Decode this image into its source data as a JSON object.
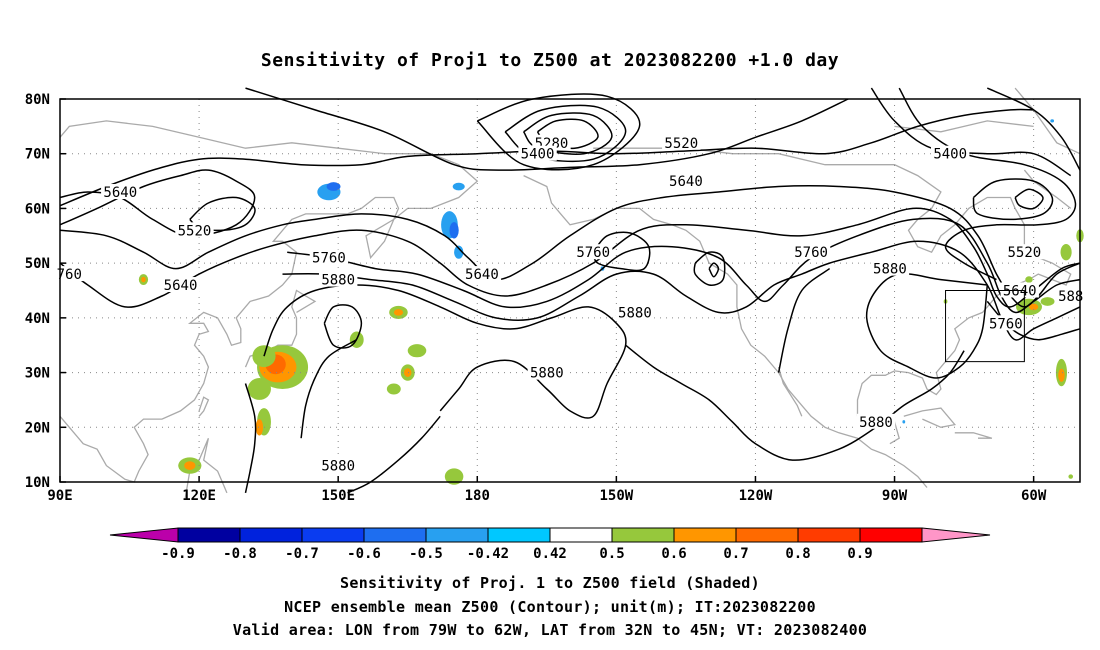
{
  "chart_data": {
    "type": "contour_map",
    "title": "Sensitivity of Proj1 to Z500 at 2023082200 +1.0 day",
    "x_ticks": [
      "90E",
      "120E",
      "150E",
      "180",
      "150W",
      "120W",
      "90W",
      "60W"
    ],
    "y_ticks": [
      "10N",
      "20N",
      "30N",
      "40N",
      "50N",
      "60N",
      "70N",
      "80N"
    ],
    "lon_range": [
      90,
      310
    ],
    "lat_range": [
      10,
      80
    ],
    "grid": true,
    "contour_field": "Z500",
    "contour_levels": [
      5280,
      5400,
      5520,
      5640,
      5760,
      5880
    ],
    "contour_labels": [
      {
        "text": "5640",
        "lon": 103,
        "lat": 63
      },
      {
        "text": "5520",
        "lon": 119,
        "lat": 56
      },
      {
        "text": "5640",
        "lon": 116,
        "lat": 46
      },
      {
        "text": "760",
        "lon": 92,
        "lat": 48
      },
      {
        "text": "5760",
        "lon": 148,
        "lat": 51
      },
      {
        "text": "5880",
        "lon": 150,
        "lat": 47
      },
      {
        "text": "5280",
        "lon": 196,
        "lat": 72
      },
      {
        "text": "5400",
        "lon": 193,
        "lat": 70
      },
      {
        "text": "5520",
        "lon": 224,
        "lat": 72
      },
      {
        "text": "5640",
        "lon": 225,
        "lat": 65
      },
      {
        "text": "5400",
        "lon": 282,
        "lat": 70
      },
      {
        "text": "5640",
        "lon": 181,
        "lat": 48
      },
      {
        "text": "5760",
        "lon": 205,
        "lat": 52
      },
      {
        "text": "5880",
        "lon": 214,
        "lat": 41
      },
      {
        "text": "5880",
        "lon": 195,
        "lat": 30
      },
      {
        "text": "5760",
        "lon": 252,
        "lat": 52
      },
      {
        "text": "5880",
        "lon": 269,
        "lat": 49
      },
      {
        "text": "5520",
        "lon": 298,
        "lat": 52
      },
      {
        "text": "5640",
        "lon": 297,
        "lat": 45
      },
      {
        "text": "5760",
        "lon": 294,
        "lat": 39
      },
      {
        "text": "588",
        "lon": 308,
        "lat": 44
      },
      {
        "text": "5880",
        "lon": 266,
        "lat": 21
      },
      {
        "text": "5880",
        "lon": 150,
        "lat": 13
      }
    ],
    "valid_box": {
      "lon": [
        281,
        298
      ],
      "lat": [
        32,
        45
      ]
    },
    "colorbar": {
      "labels": [
        "-0.9",
        "-0.8",
        "-0.7",
        "-0.6",
        "-0.5",
        "-0.42",
        "0.42",
        "0.5",
        "0.6",
        "0.7",
        "0.8",
        "0.9"
      ],
      "colors": [
        "#bb00aa",
        "#0000a0",
        "#0022dd",
        "#0a3cf0",
        "#1e6ef0",
        "#28a0f0",
        "#00c8ff",
        "#ffffff",
        "#96c83c",
        "#ff9600",
        "#ff6a00",
        "#ff3c00",
        "#ff0000",
        "#ff96c8"
      ]
    },
    "caption": [
      "Sensitivity of Proj. 1 to Z500 field (Shaded)",
      "NCEP ensemble mean Z500 (Contour); unit(m); IT:2023082200",
      "Valid area: LON from 79W to 62W, LAT from 32N to 45N; VT: 2023082400"
    ]
  }
}
